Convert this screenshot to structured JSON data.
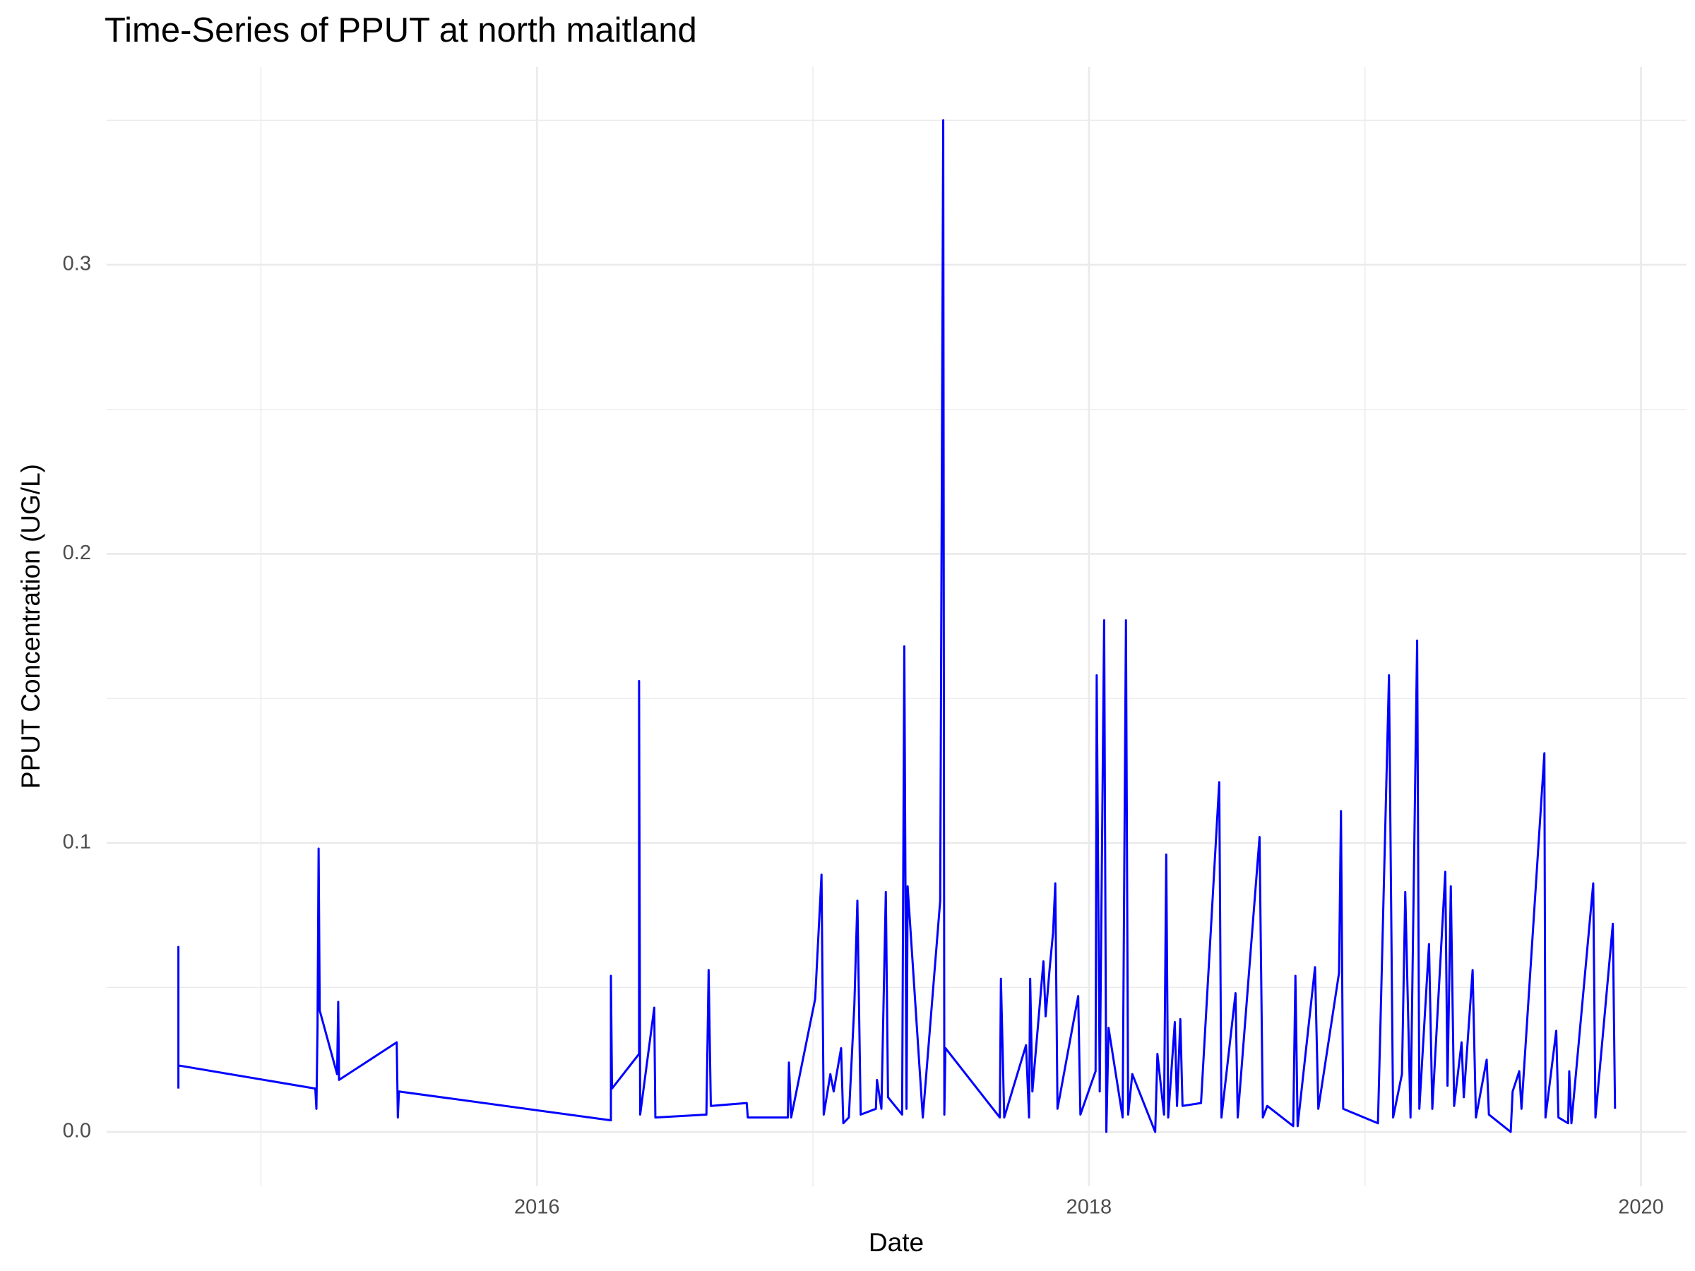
{
  "chart_data": {
    "type": "line",
    "title": "Time-Series of PPUT at north maitland",
    "x_label": "Date",
    "y_label": "PPUT Concentration (UG/L)",
    "color": "#0000ff",
    "grid": true,
    "xlim": [
      2014.441,
      2020.165
    ],
    "ylim": [
      -0.0188,
      0.3684
    ],
    "xticks": [
      2016,
      2018,
      2020
    ],
    "xminor": [
      2015,
      2017,
      2019
    ],
    "yticks": [
      {
        "value": 0,
        "label": "0.0"
      },
      0.1,
      0.2,
      0.3
    ],
    "yminor": [
      0.05,
      0.15,
      0.25,
      0.35
    ],
    "x": [
      2014.701,
      2014.701,
      2014.701,
      2015.197,
      2015.201,
      2015.205,
      2015.209,
      2015.213,
      2015.276,
      2015.28,
      2015.283,
      2015.492,
      2015.496,
      2015.5,
      2016.268,
      2016.268,
      2016.272,
      2016.37,
      2016.37,
      2016.374,
      2016.425,
      2016.429,
      2016.614,
      2016.622,
      2016.63,
      2016.76,
      2016.764,
      2016.909,
      2016.913,
      2016.921,
      2017.008,
      2017.031,
      2017.039,
      2017.063,
      2017.075,
      2017.102,
      2017.11,
      2017.13,
      2017.15,
      2017.161,
      2017.173,
      2017.228,
      2017.232,
      2017.248,
      2017.264,
      2017.272,
      2017.323,
      2017.331,
      2017.339,
      2017.343,
      2017.398,
      2017.461,
      2017.472,
      2017.476,
      2017.48,
      2017.677,
      2017.681,
      2017.693,
      2017.772,
      2017.783,
      2017.787,
      2017.795,
      2017.835,
      2017.843,
      2017.858,
      2017.87,
      2017.878,
      2017.886,
      2017.961,
      2017.969,
      2018.024,
      2018.028,
      2018.039,
      2018.055,
      2018.063,
      2018.071,
      2018.122,
      2018.134,
      2018.142,
      2018.157,
      2018.24,
      2018.248,
      2018.272,
      2018.28,
      2018.287,
      2018.311,
      2018.319,
      2018.331,
      2018.339,
      2018.406,
      2018.472,
      2018.48,
      2018.531,
      2018.539,
      2018.618,
      2018.63,
      2018.646,
      2018.74,
      2018.748,
      2018.756,
      2018.819,
      2018.831,
      2018.906,
      2018.913,
      2018.921,
      2019.047,
      2019.055,
      2019.087,
      2019.102,
      2019.134,
      2019.146,
      2019.165,
      2019.189,
      2019.197,
      2019.232,
      2019.244,
      2019.291,
      2019.299,
      2019.311,
      2019.323,
      2019.35,
      2019.358,
      2019.39,
      2019.402,
      2019.441,
      2019.449,
      2019.528,
      2019.535,
      2019.559,
      2019.567,
      2019.65,
      2019.654,
      2019.693,
      2019.701,
      2019.736,
      2019.74,
      2019.748,
      2019.827,
      2019.835,
      2019.898,
      2019.906
    ],
    "values": [
      0.015,
      0.064,
      0.023,
      0.015,
      0.008,
      0.036,
      0.098,
      0.042,
      0.02,
      0.045,
      0.018,
      0.031,
      0.005,
      0.014,
      0.004,
      0.054,
      0.015,
      0.027,
      0.156,
      0.006,
      0.043,
      0.005,
      0.006,
      0.056,
      0.009,
      0.01,
      0.005,
      0.005,
      0.024,
      0.005,
      0.046,
      0.089,
      0.006,
      0.02,
      0.014,
      0.029,
      0.003,
      0.005,
      0.044,
      0.08,
      0.006,
      0.008,
      0.018,
      0.008,
      0.083,
      0.012,
      0.006,
      0.168,
      0.008,
      0.085,
      0.005,
      0.08,
      0.35,
      0.006,
      0.029,
      0.005,
      0.053,
      0.005,
      0.03,
      0.005,
      0.053,
      0.014,
      0.059,
      0.04,
      0.057,
      0.069,
      0.086,
      0.008,
      0.047,
      0.006,
      0.021,
      0.158,
      0.014,
      0.177,
      0,
      0.036,
      0.005,
      0.177,
      0.006,
      0.02,
      0,
      0.027,
      0.006,
      0.096,
      0.005,
      0.038,
      0.009,
      0.039,
      0.009,
      0.01,
      0.121,
      0.005,
      0.048,
      0.005,
      0.102,
      0.005,
      0.009,
      0.002,
      0.054,
      0.002,
      0.057,
      0.008,
      0.055,
      0.111,
      0.008,
      0.003,
      0.033,
      0.158,
      0.005,
      0.02,
      0.083,
      0.005,
      0.17,
      0.008,
      0.065,
      0.008,
      0.09,
      0.016,
      0.085,
      0.009,
      0.031,
      0.012,
      0.056,
      0.005,
      0.025,
      0.006,
      0,
      0.014,
      0.021,
      0.008,
      0.131,
      0.005,
      0.035,
      0.005,
      0.003,
      0.021,
      0.003,
      0.086,
      0.005,
      0.072,
      0.008
    ]
  }
}
